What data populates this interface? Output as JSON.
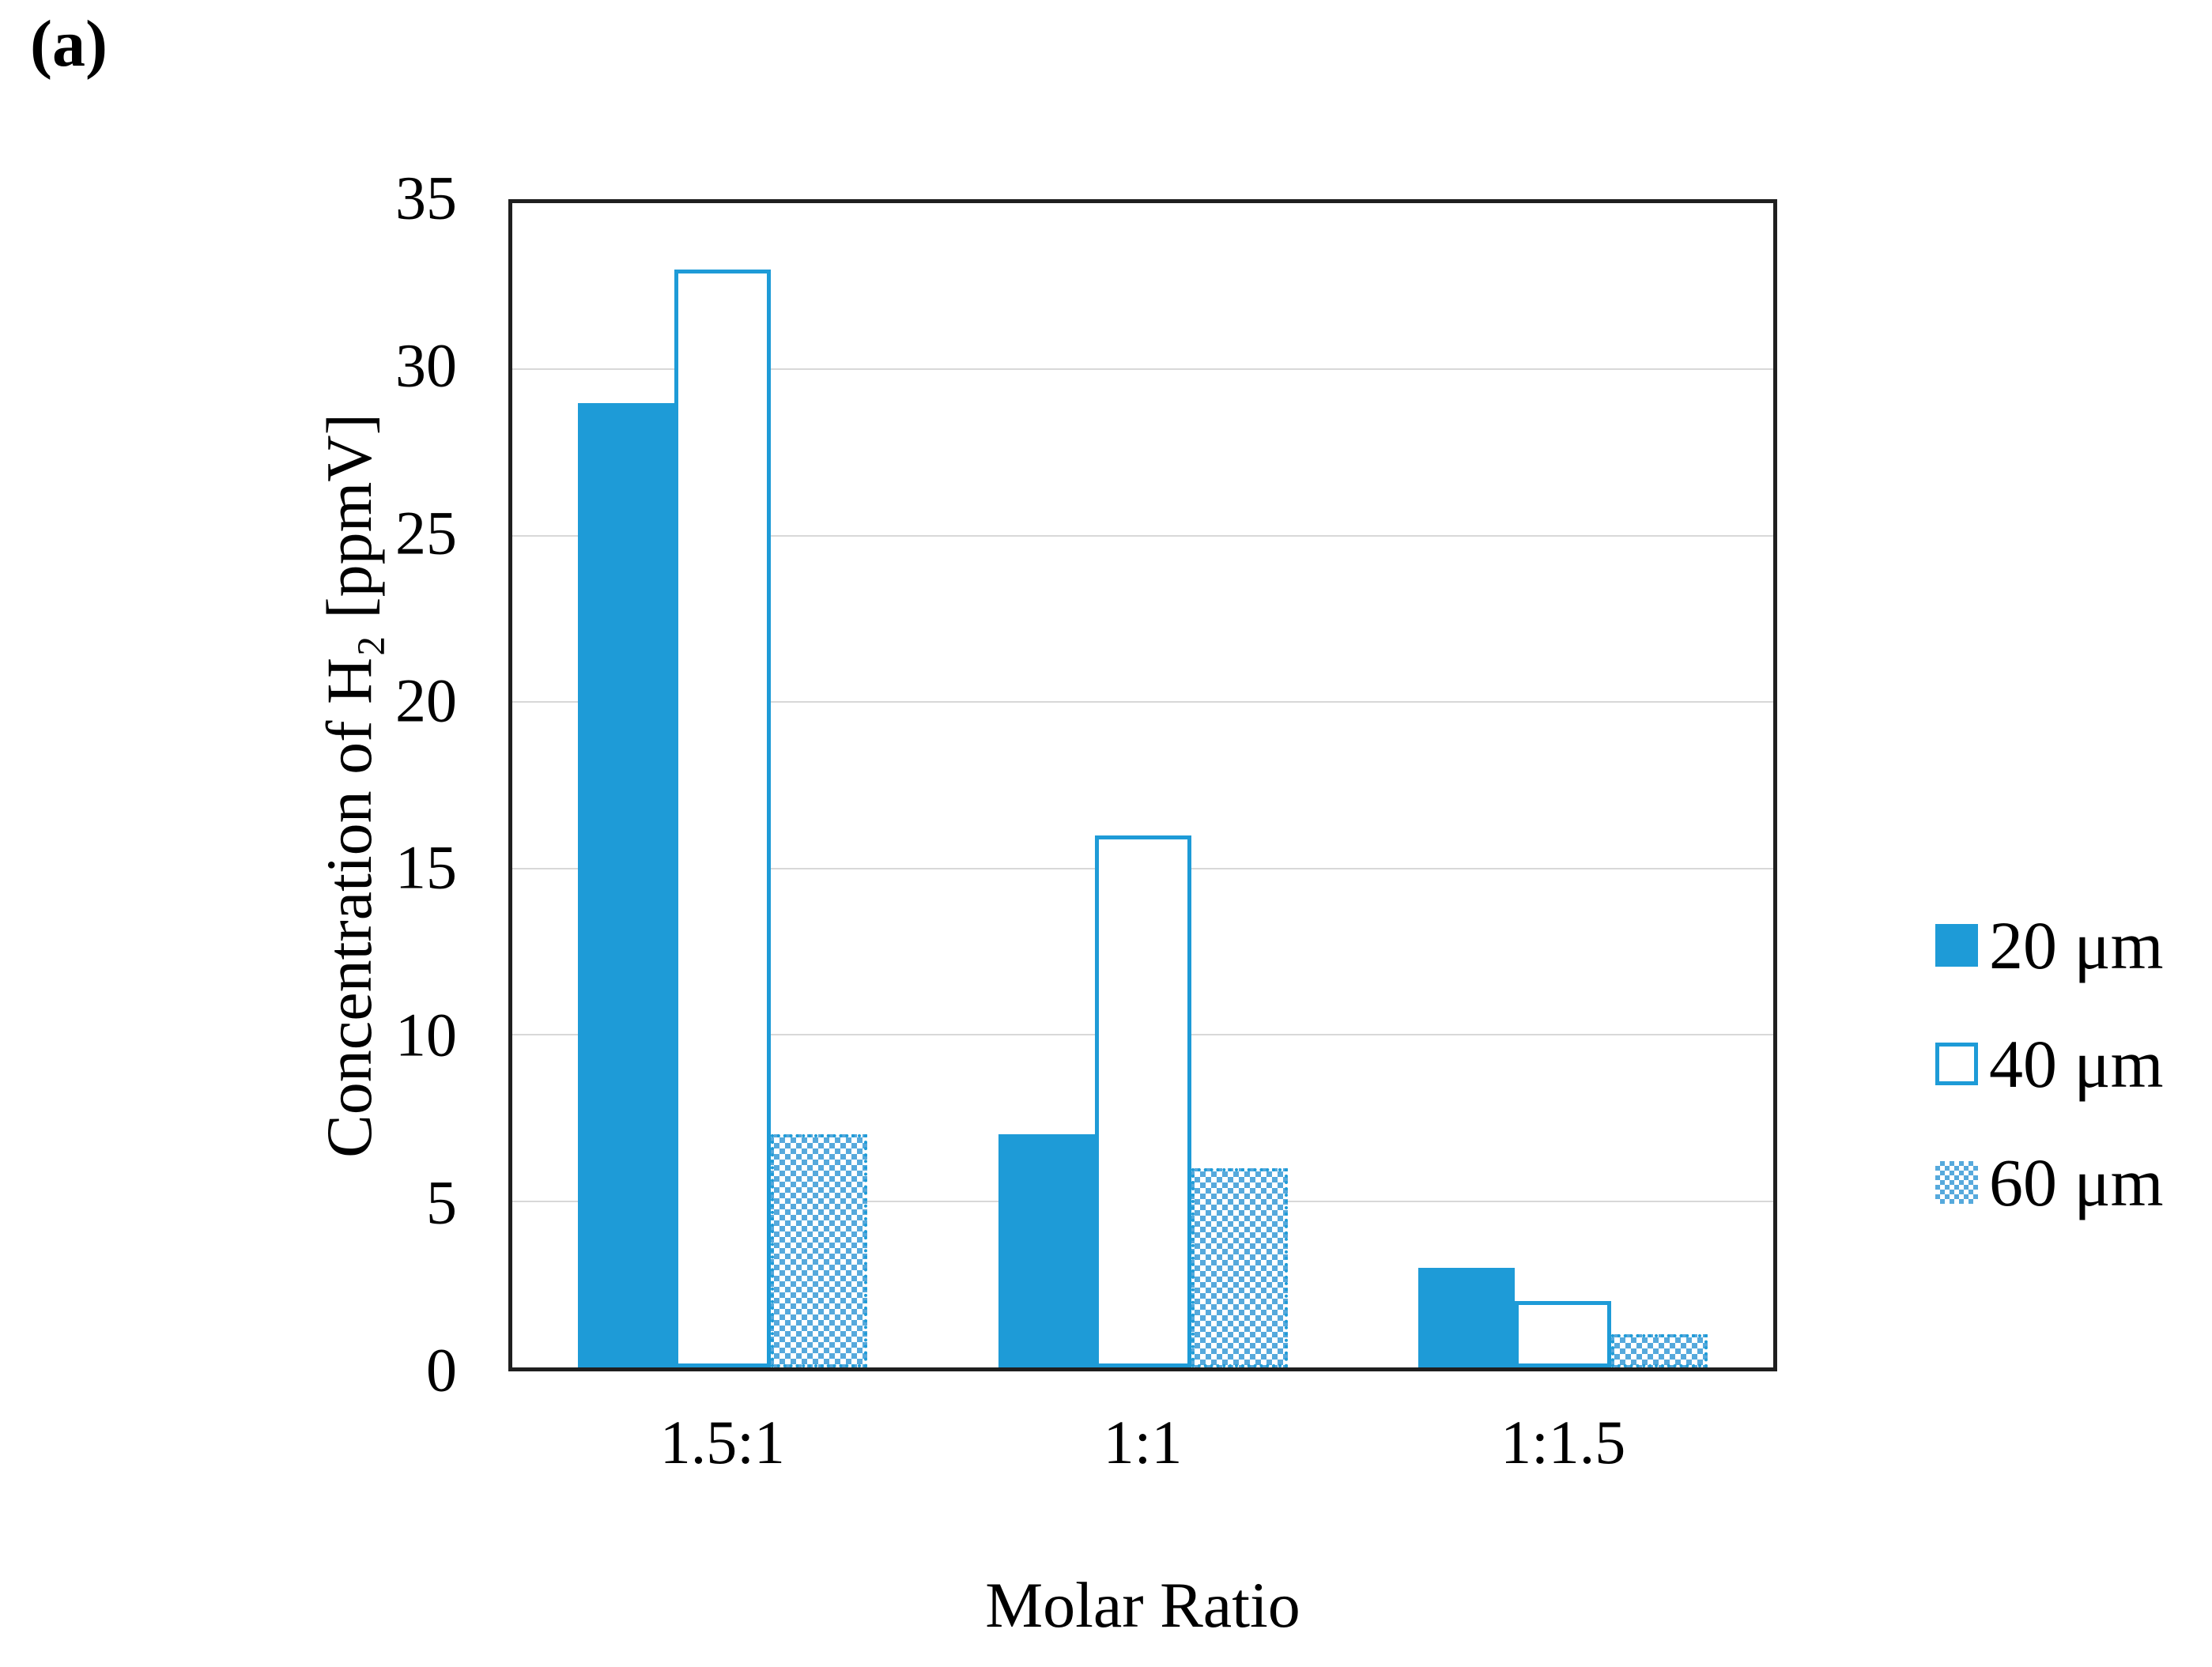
{
  "figure_label": "(a)",
  "chart_data": {
    "type": "bar",
    "title": "",
    "xlabel": "Molar Ratio",
    "ylabel": "Concentration of H₂ [ppmV]",
    "ylim": [
      0,
      35
    ],
    "y_ticks": [
      0,
      5,
      10,
      15,
      20,
      25,
      30,
      35
    ],
    "grid": "horizontal",
    "legend_position": "right",
    "categories": [
      "1.5:1",
      "1:1",
      "1:1.5"
    ],
    "series": [
      {
        "name": "20 μm",
        "style": "solid",
        "values": [
          29,
          7,
          3
        ]
      },
      {
        "name": "40 μm",
        "style": "outline",
        "values": [
          33,
          16,
          2
        ]
      },
      {
        "name": "60 μm",
        "style": "pattern",
        "values": [
          7,
          6,
          1
        ]
      }
    ],
    "colors": {
      "accent": "#1E9BD7",
      "pattern_fill": "#56A9DC",
      "frame": "#1F1F1F",
      "gridline": "#D8D8D8",
      "text": "#000000"
    }
  }
}
